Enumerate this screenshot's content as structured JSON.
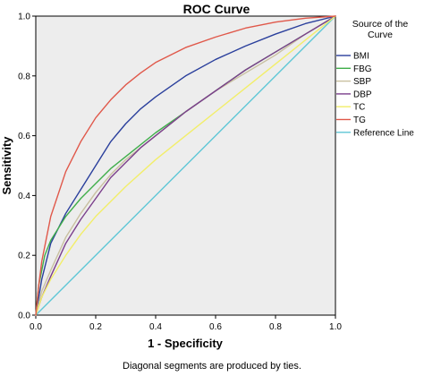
{
  "chart_data": {
    "type": "line",
    "title": "ROC Curve",
    "xlabel": "1 - Specificity",
    "ylabel": "Sensitivity",
    "xlim": [
      0,
      1
    ],
    "ylim": [
      0,
      1
    ],
    "x_ticks": [
      "0.0",
      "0.2",
      "0.4",
      "0.6",
      "0.8",
      "1.0"
    ],
    "y_ticks": [
      "0.0",
      "0.2",
      "0.4",
      "0.6",
      "0.8",
      "1.0"
    ],
    "footnote": "Diagonal segments are produced by ties.",
    "legend": {
      "title": "Source of the Curve",
      "position": "right"
    },
    "plot_background": "#ededed",
    "series": [
      {
        "name": "BMI",
        "color": "#2a3f9c",
        "x": [
          0,
          0.02,
          0.05,
          0.1,
          0.15,
          0.2,
          0.25,
          0.3,
          0.35,
          0.4,
          0.5,
          0.6,
          0.7,
          0.8,
          0.9,
          1.0
        ],
        "y": [
          0,
          0.12,
          0.24,
          0.34,
          0.42,
          0.5,
          0.58,
          0.64,
          0.69,
          0.73,
          0.8,
          0.855,
          0.9,
          0.94,
          0.975,
          1.0
        ]
      },
      {
        "name": "FBG",
        "color": "#3fae4a",
        "x": [
          0,
          0.01,
          0.03,
          0.05,
          0.1,
          0.15,
          0.2,
          0.25,
          0.3,
          0.4,
          0.5,
          0.6,
          0.7,
          0.8,
          0.9,
          1.0
        ],
        "y": [
          0,
          0.1,
          0.2,
          0.25,
          0.33,
          0.39,
          0.44,
          0.49,
          0.53,
          0.61,
          0.68,
          0.75,
          0.82,
          0.88,
          0.94,
          1.0
        ]
      },
      {
        "name": "SBP",
        "color": "#c9c0a0",
        "x": [
          0,
          0.02,
          0.05,
          0.1,
          0.15,
          0.2,
          0.25,
          0.3,
          0.35,
          0.4,
          0.5,
          0.6,
          0.7,
          0.8,
          0.9,
          1.0
        ],
        "y": [
          0,
          0.08,
          0.15,
          0.26,
          0.34,
          0.41,
          0.47,
          0.52,
          0.56,
          0.6,
          0.68,
          0.75,
          0.81,
          0.87,
          0.94,
          1.0
        ]
      },
      {
        "name": "DBP",
        "color": "#7b3f8c",
        "x": [
          0,
          0.02,
          0.05,
          0.1,
          0.15,
          0.2,
          0.25,
          0.3,
          0.35,
          0.4,
          0.5,
          0.6,
          0.7,
          0.8,
          0.9,
          1.0
        ],
        "y": [
          0,
          0.06,
          0.13,
          0.24,
          0.32,
          0.39,
          0.46,
          0.51,
          0.56,
          0.6,
          0.68,
          0.75,
          0.82,
          0.88,
          0.94,
          1.0
        ]
      },
      {
        "name": "TC",
        "color": "#f2ee6a",
        "x": [
          0,
          0.02,
          0.05,
          0.1,
          0.15,
          0.2,
          0.3,
          0.4,
          0.5,
          0.6,
          0.7,
          0.8,
          0.9,
          1.0
        ],
        "y": [
          0,
          0.06,
          0.12,
          0.2,
          0.27,
          0.33,
          0.43,
          0.52,
          0.6,
          0.68,
          0.76,
          0.84,
          0.92,
          1.0
        ]
      },
      {
        "name": "TG",
        "color": "#e0584a",
        "x": [
          0,
          0.01,
          0.02,
          0.05,
          0.1,
          0.15,
          0.2,
          0.25,
          0.3,
          0.35,
          0.4,
          0.5,
          0.6,
          0.7,
          0.8,
          0.9,
          1.0
        ],
        "y": [
          0,
          0.1,
          0.18,
          0.33,
          0.48,
          0.58,
          0.66,
          0.72,
          0.77,
          0.81,
          0.845,
          0.895,
          0.93,
          0.96,
          0.98,
          0.993,
          1.0
        ]
      },
      {
        "name": "Reference Line",
        "color": "#5fc7d6",
        "x": [
          0,
          1
        ],
        "y": [
          0,
          1
        ]
      }
    ]
  }
}
